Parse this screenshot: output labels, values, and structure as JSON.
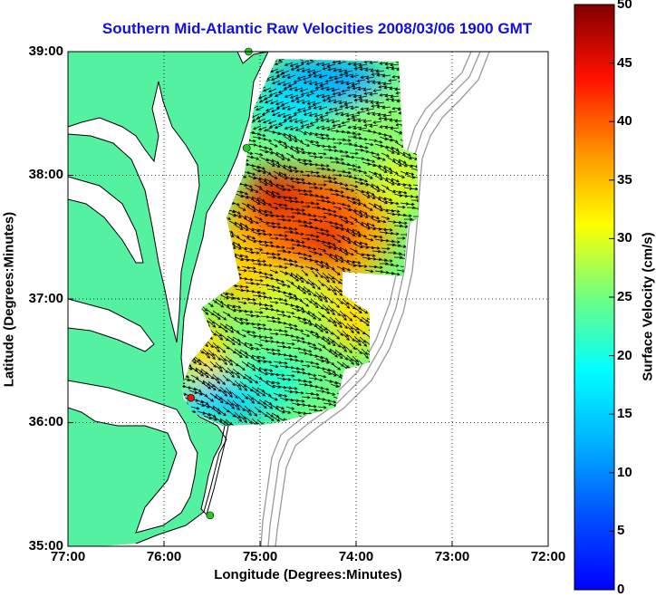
{
  "title": "Southern Mid-Atlantic Raw Velocities 2008/03/06 1900 GMT",
  "xlabel": "Longitude (Degrees:Minutes)",
  "ylabel": "Latitude (Degrees:Minutes)",
  "colorbar_label": "Surface Velocity (cm/s)",
  "x_ticks": [
    "77:00",
    "76:00",
    "75:00",
    "74:00",
    "73:00",
    "72:00"
  ],
  "y_ticks": [
    "39:00",
    "38:00",
    "37:00",
    "36:00",
    "35:00"
  ],
  "colorbar_ticks": [
    "50",
    "45",
    "40",
    "35",
    "30",
    "25",
    "20",
    "15",
    "10",
    "5",
    "0"
  ],
  "colors": {
    "land": "#54f2a0",
    "title": "#1010e0",
    "bathymetry": "#999999",
    "station_active": "#22cc22",
    "station_alert": "#ee1111"
  },
  "chart_data": {
    "type": "heatmap",
    "xlim": [
      -77,
      -72
    ],
    "ylim": [
      35,
      39
    ],
    "clim": [
      0,
      50
    ],
    "colormap": "jet",
    "grid": true,
    "stations": [
      {
        "lon": -75.12,
        "lat": 39.0,
        "status": "active"
      },
      {
        "lon": -75.14,
        "lat": 38.22,
        "status": "active"
      },
      {
        "lon": -75.72,
        "lat": 36.2,
        "status": "alert"
      },
      {
        "lon": -75.52,
        "lat": 35.25,
        "status": "active"
      }
    ],
    "velocity_peaks": [
      {
        "lon": -74.8,
        "lat": 37.85,
        "speed": 41
      },
      {
        "lon": -74.5,
        "lat": 37.4,
        "speed": 40
      },
      {
        "lon": -74.3,
        "lat": 36.85,
        "speed": 24
      },
      {
        "lon": -74.6,
        "lat": 38.55,
        "speed": 12
      },
      {
        "lon": -75.0,
        "lat": 36.25,
        "speed": 10
      }
    ]
  }
}
